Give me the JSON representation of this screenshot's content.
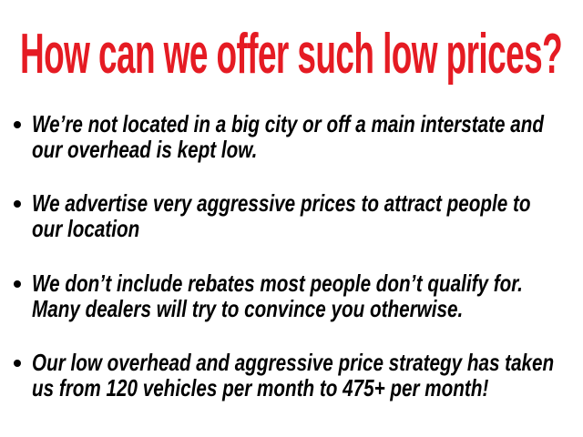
{
  "title": "How can we offer such low prices?",
  "colors": {
    "title": "#e51b23",
    "text": "#000000"
  },
  "bullets": [
    {
      "lines": [
        "We’re not located in a big city or off a main interstate and",
        "our overhead is kept low."
      ]
    },
    {
      "lines": [
        "We advertise very aggressive prices to attract people to",
        "our location"
      ]
    },
    {
      "lines": [
        "We don’t include rebates most people don’t qualify for.",
        "Many dealers will try to convince you otherwise."
      ]
    },
    {
      "lines": [
        "Our low overhead and aggressive price strategy has taken",
        "us from 120 vehicles per month to 475+ per month!"
      ]
    }
  ]
}
